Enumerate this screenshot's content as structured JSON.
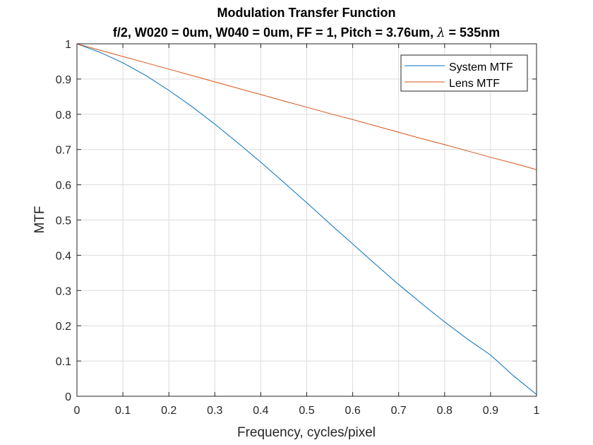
{
  "chart_data": {
    "type": "line",
    "title": "Modulation Transfer Function",
    "subtitle_prefix": "f/2, W020 = 0um, W040 = 0um, FF = 1, Pitch = 3.76um,",
    "subtitle_symbol": "λ",
    "subtitle_suffix": "= 535nm",
    "xlabel": "Frequency, cycles/pixel",
    "ylabel": "MTF",
    "xlim": [
      0,
      1
    ],
    "ylim": [
      0,
      1
    ],
    "xticks": [
      0,
      0.1,
      0.2,
      0.3,
      0.4,
      0.5,
      0.6,
      0.7,
      0.8,
      0.9,
      1
    ],
    "yticks": [
      0,
      0.1,
      0.2,
      0.3,
      0.4,
      0.5,
      0.6,
      0.7,
      0.8,
      0.9,
      1
    ],
    "xtick_labels": [
      "0",
      "0.1",
      "0.2",
      "0.3",
      "0.4",
      "0.5",
      "0.6",
      "0.7",
      "0.8",
      "0.9",
      "1"
    ],
    "ytick_labels": [
      "0",
      "0.1",
      "0.2",
      "0.3",
      "0.4",
      "0.5",
      "0.6",
      "0.7",
      "0.8",
      "0.9",
      "1"
    ],
    "grid": true,
    "legend_position": "top-right",
    "x": [
      0,
      0.05,
      0.1,
      0.15,
      0.2,
      0.25,
      0.3,
      0.35,
      0.4,
      0.45,
      0.5,
      0.55,
      0.6,
      0.65,
      0.7,
      0.75,
      0.8,
      0.85,
      0.9,
      0.95,
      1.0
    ],
    "series": [
      {
        "name": "System MTF",
        "color": "#0072BD",
        "values": [
          1.0,
          0.976,
          0.946,
          0.91,
          0.868,
          0.822,
          0.772,
          0.719,
          0.664,
          0.607,
          0.549,
          0.49,
          0.432,
          0.374,
          0.317,
          0.263,
          0.211,
          0.162,
          0.117,
          0.058,
          0.005
        ]
      },
      {
        "name": "Lens MTF",
        "color": "#D95319",
        "values": [
          1.0,
          0.982,
          0.964,
          0.946,
          0.928,
          0.91,
          0.892,
          0.874,
          0.856,
          0.838,
          0.82,
          0.802,
          0.785,
          0.767,
          0.749,
          0.731,
          0.714,
          0.696,
          0.678,
          0.661,
          0.643
        ]
      }
    ]
  }
}
